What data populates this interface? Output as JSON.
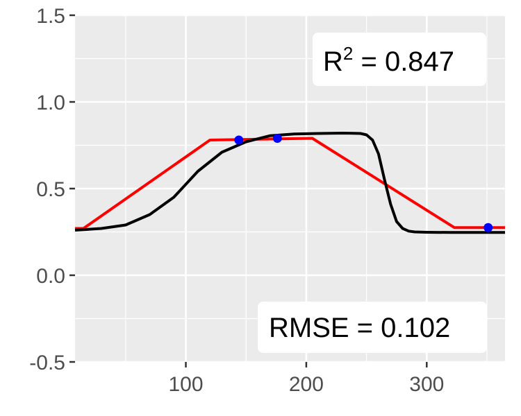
{
  "chart_data": {
    "type": "line",
    "xlim": [
      8,
      365
    ],
    "ylim": [
      -0.5,
      1.5
    ],
    "x_ticks": [
      {
        "value": 100,
        "label": "100"
      },
      {
        "value": 200,
        "label": "200"
      },
      {
        "value": 300,
        "label": "300"
      }
    ],
    "y_ticks": [
      {
        "value": 1.5,
        "label": "1.5"
      },
      {
        "value": 1.0,
        "label": "1.0"
      },
      {
        "value": 0.5,
        "label": "0.5"
      },
      {
        "value": 0.0,
        "label": "0.0"
      },
      {
        "value": -0.5,
        "label": "-0.5"
      }
    ],
    "grid": true,
    "background": "#ebebeb",
    "series": [
      {
        "kind": "line",
        "color": "#ff0000",
        "x": [
          8,
          15,
          120,
          205,
          323,
          365
        ],
        "y": [
          0.27,
          0.27,
          0.78,
          0.79,
          0.275,
          0.275
        ]
      },
      {
        "kind": "line",
        "color": "#000000",
        "x": [
          8,
          30,
          50,
          70,
          90,
          110,
          130,
          150,
          170,
          190,
          210,
          230,
          245,
          250,
          255,
          260,
          265,
          270,
          275,
          280,
          285,
          290,
          300,
          320,
          365
        ],
        "y": [
          0.26,
          0.27,
          0.29,
          0.35,
          0.45,
          0.6,
          0.71,
          0.77,
          0.805,
          0.815,
          0.818,
          0.82,
          0.818,
          0.81,
          0.78,
          0.7,
          0.55,
          0.41,
          0.31,
          0.27,
          0.255,
          0.25,
          0.248,
          0.247,
          0.247
        ]
      },
      {
        "kind": "points",
        "color": "#0000ff",
        "x": [
          144,
          176,
          351
        ],
        "y": [
          0.78,
          0.79,
          0.275
        ]
      }
    ],
    "annotations": [
      {
        "base": "R",
        "superscript": "2",
        "rest": " = 0.847",
        "position": "top-right"
      },
      {
        "text": "RMSE = 0.102",
        "position": "bottom-right"
      }
    ]
  }
}
